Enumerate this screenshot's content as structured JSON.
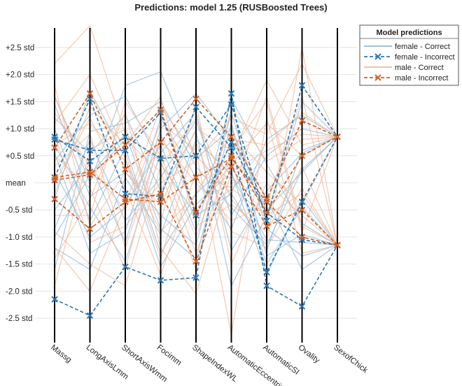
{
  "chart_data": {
    "type": "parallel-coordinates",
    "title": "Predictions: model 1.25 (RUSBoosted Trees)",
    "categories": [
      "Massg",
      "LongAxisLmm",
      "ShortAxisWmm",
      "Focimm",
      "ShapeIndexWL",
      "AutomaticEccentricity",
      "AutomaticSI",
      "Ovality",
      "SexofChick"
    ],
    "y_ticks": [
      {
        "value": 2.5,
        "label": "+2.5 std"
      },
      {
        "value": 2.0,
        "label": "+2.0 std"
      },
      {
        "value": 1.5,
        "label": "+1.5 std"
      },
      {
        "value": 1.0,
        "label": "+1.0 std"
      },
      {
        "value": 0.5,
        "label": "+0.5 std"
      },
      {
        "value": 0.0,
        "label": "mean"
      },
      {
        "value": -0.5,
        "label": "-0.5 std"
      },
      {
        "value": -1.0,
        "label": "-1.0 std"
      },
      {
        "value": -1.5,
        "label": "-1.5 std"
      },
      {
        "value": -2.0,
        "label": "-2.0 std"
      },
      {
        "value": -2.5,
        "label": "-2.5 std"
      }
    ],
    "ylim": [
      -2.95,
      2.95
    ],
    "legend": {
      "title": "Model predictions",
      "position": "top-right",
      "entries": [
        {
          "label": "female - Correct",
          "style": "solid",
          "marker": "none",
          "color": "#8fb8d8"
        },
        {
          "label": "female - Incorrect",
          "style": "dashed",
          "marker": "x",
          "color": "#2a78b5"
        },
        {
          "label": "male - Correct",
          "style": "solid",
          "marker": "none",
          "color": "#f0b89a"
        },
        {
          "label": "male - Incorrect",
          "style": "dashed",
          "marker": "x",
          "color": "#d35f23"
        }
      ]
    },
    "series": [
      {
        "name": "female - Incorrect",
        "values": [
          -2.15,
          -2.45,
          -1.55,
          -1.8,
          -1.75,
          1.65,
          -1.9,
          -2.28,
          -1.15
        ]
      },
      {
        "name": "female - Incorrect",
        "values": [
          0.85,
          0.4,
          0.85,
          0.45,
          0.5,
          1.45,
          -0.7,
          1.8,
          0.85
        ]
      },
      {
        "name": "female - Incorrect",
        "values": [
          0.1,
          1.55,
          -0.2,
          -0.25,
          1.4,
          0.65,
          -1.65,
          -0.35,
          0.85
        ]
      },
      {
        "name": "female - Incorrect",
        "values": [
          0.8,
          0.6,
          0.6,
          1.3,
          -0.6,
          0.75,
          -0.55,
          -1.05,
          -1.15
        ]
      },
      {
        "name": "male - Incorrect",
        "values": [
          0.65,
          1.65,
          0.25,
          0.75,
          1.55,
          0.85,
          -0.3,
          1.15,
          0.85
        ]
      },
      {
        "name": "male - Incorrect",
        "values": [
          -0.3,
          -0.85,
          -0.35,
          -0.2,
          -1.45,
          0.3,
          -0.8,
          -0.5,
          -1.15
        ]
      },
      {
        "name": "male - Incorrect",
        "values": [
          0.05,
          0.15,
          0.7,
          1.35,
          -0.55,
          0.5,
          -0.55,
          0.5,
          0.85
        ]
      },
      {
        "name": "male - Incorrect",
        "values": [
          0.1,
          0.2,
          -0.3,
          -0.35,
          0.1,
          0.45,
          -0.35,
          -1.0,
          -1.15
        ]
      }
    ],
    "background_lines": [
      {
        "name": "female - Correct",
        "values": [
          1.6,
          0.0,
          1.8,
          2.05,
          0.45,
          1.0,
          -0.5,
          0.2,
          0.85
        ]
      },
      {
        "name": "female - Correct",
        "values": [
          -1.2,
          -1.6,
          0.1,
          -0.95,
          0.8,
          0.15,
          -1.05,
          -1.1,
          -1.15
        ]
      },
      {
        "name": "female - Correct",
        "values": [
          0.4,
          1.25,
          1.6,
          0.35,
          -0.6,
          -0.2,
          -1.25,
          0.6,
          0.85
        ]
      },
      {
        "name": "female - Correct",
        "values": [
          -0.5,
          0.35,
          -1.1,
          1.0,
          1.65,
          0.8,
          -0.3,
          -1.6,
          -1.15
        ]
      },
      {
        "name": "female - Correct",
        "values": [
          1.0,
          -0.7,
          0.65,
          -1.3,
          -0.2,
          0.4,
          -1.5,
          -0.45,
          -1.15
        ]
      },
      {
        "name": "female - Correct",
        "values": [
          -0.85,
          0.8,
          -0.7,
          0.1,
          1.15,
          -0.6,
          0.5,
          1.0,
          0.85
        ]
      },
      {
        "name": "female - Correct",
        "values": [
          1.45,
          -0.25,
          0.2,
          -0.6,
          -1.15,
          1.3,
          -0.85,
          -1.35,
          -1.15
        ]
      },
      {
        "name": "female - Correct",
        "values": [
          -1.6,
          0.95,
          1.1,
          1.5,
          0.3,
          -0.45,
          -1.15,
          0.25,
          0.85
        ]
      },
      {
        "name": "female - Correct",
        "values": [
          0.2,
          -1.0,
          -0.45,
          0.7,
          -0.9,
          1.55,
          0.35,
          -0.75,
          -1.15
        ]
      },
      {
        "name": "female - Correct",
        "values": [
          1.2,
          0.55,
          1.25,
          -0.15,
          0.95,
          -1.9,
          -0.6,
          1.5,
          0.85
        ]
      },
      {
        "name": "female - Correct",
        "values": [
          -0.3,
          1.7,
          0.45,
          -1.55,
          -0.4,
          0.2,
          -1.7,
          -0.3,
          -1.15
        ]
      },
      {
        "name": "female - Correct",
        "values": [
          0.7,
          -0.45,
          -1.45,
          0.55,
          1.3,
          -1.25,
          -0.15,
          0.55,
          0.85
        ]
      },
      {
        "name": "female - Correct",
        "values": [
          -1.0,
          0.15,
          0.9,
          -0.85,
          -1.4,
          1.1,
          -1.35,
          -0.95,
          -1.15
        ]
      },
      {
        "name": "female - Correct",
        "values": [
          0.55,
          -1.3,
          -0.9,
          1.2,
          0.1,
          -0.85,
          0.8,
          1.25,
          0.85
        ]
      },
      {
        "name": "male - Correct",
        "values": [
          2.2,
          2.9,
          0.9,
          0.4,
          -1.3,
          0.5,
          1.9,
          0.7,
          0.85
        ]
      },
      {
        "name": "male - Correct",
        "values": [
          -0.9,
          -1.5,
          -1.9,
          0.3,
          1.2,
          -0.3,
          -1.1,
          2.5,
          -1.15
        ]
      },
      {
        "name": "male - Correct",
        "values": [
          0.7,
          1.1,
          0.4,
          -0.9,
          -0.2,
          0.9,
          0.2,
          -0.4,
          0.85
        ]
      },
      {
        "name": "male - Correct",
        "values": [
          1.3,
          0.3,
          -0.5,
          1.1,
          0.6,
          -2.8,
          1.2,
          -1.3,
          -1.15
        ]
      },
      {
        "name": "male - Correct",
        "values": [
          -1.4,
          -0.3,
          1.3,
          -1.2,
          -2.05,
          0.2,
          0.6,
          0.9,
          0.85
        ]
      },
      {
        "name": "male - Correct",
        "values": [
          0.3,
          0.9,
          -1.2,
          0.8,
          0.0,
          -0.7,
          -0.4,
          1.6,
          -1.15
        ]
      },
      {
        "name": "male - Correct",
        "values": [
          1.8,
          -0.8,
          0.2,
          -0.4,
          1.0,
          0.6,
          1.5,
          -0.9,
          0.85
        ]
      },
      {
        "name": "male - Correct",
        "values": [
          -0.2,
          1.4,
          0.7,
          1.6,
          -0.8,
          -0.4,
          -0.9,
          0.3,
          -1.15
        ]
      },
      {
        "name": "male - Correct",
        "values": [
          0.9,
          -1.1,
          -0.8,
          0.0,
          0.4,
          1.2,
          0.9,
          2.2,
          0.85
        ]
      },
      {
        "name": "male - Correct",
        "values": [
          -1.9,
          0.6,
          1.0,
          -0.7,
          1.45,
          -1.5,
          0.0,
          -0.6,
          -1.15
        ]
      },
      {
        "name": "male - Correct",
        "values": [
          0.5,
          -0.1,
          -1.6,
          0.9,
          -0.5,
          0.35,
          1.1,
          0.5,
          0.85
        ]
      },
      {
        "name": "male - Correct",
        "values": [
          1.1,
          2.0,
          0.55,
          -1.4,
          0.75,
          -0.9,
          -1.2,
          -0.1,
          -1.15
        ]
      },
      {
        "name": "male - Correct",
        "values": [
          -0.6,
          -0.6,
          1.5,
          0.5,
          -1.0,
          0.8,
          0.7,
          1.3,
          0.85
        ]
      },
      {
        "name": "male - Correct",
        "values": [
          0.0,
          1.2,
          -0.1,
          -1.7,
          0.2,
          -0.1,
          -0.6,
          -0.2,
          -1.15
        ]
      },
      {
        "name": "male - Correct",
        "values": [
          1.6,
          0.1,
          0.8,
          0.2,
          -1.6,
          1.4,
          0.4,
          0.8,
          0.85
        ]
      },
      {
        "name": "male - Correct",
        "values": [
          -1.2,
          -2.0,
          -0.4,
          1.4,
          0.5,
          -0.2,
          1.6,
          -0.8,
          -1.15
        ]
      }
    ]
  }
}
